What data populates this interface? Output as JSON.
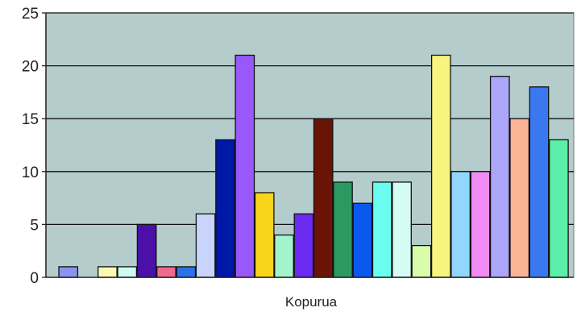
{
  "chart_data": {
    "type": "bar",
    "xlabel": "Kopurua",
    "ylabel": "",
    "title": "",
    "ylim": [
      0,
      25
    ],
    "yticks": [
      0,
      5,
      10,
      15,
      20,
      25
    ],
    "grid": true,
    "legend": "none",
    "plot_background": "#b4cccc",
    "values": [
      1,
      0,
      1,
      1,
      5,
      1,
      1,
      6,
      13,
      21,
      8,
      4,
      6,
      15,
      9,
      7,
      9,
      9,
      3,
      21,
      10,
      10,
      19,
      15,
      18,
      13
    ],
    "colors": [
      "#8a92f2",
      "#c8c8c8",
      "#fdf7b4",
      "#ccfcf0",
      "#4a10a8",
      "#f06a8e",
      "#2a72e8",
      "#c8d4fc",
      "#0018a8",
      "#9858fa",
      "#f8d41a",
      "#a2f4cc",
      "#6a2af0",
      "#6a1408",
      "#2a9a60",
      "#0a58f0",
      "#6afcf0",
      "#d4fcf2",
      "#d8fcaa",
      "#f8f480",
      "#92d6fc",
      "#f08cf4",
      "#aca6fa",
      "#fcb496",
      "#3a78f0",
      "#5af0a8"
    ]
  }
}
